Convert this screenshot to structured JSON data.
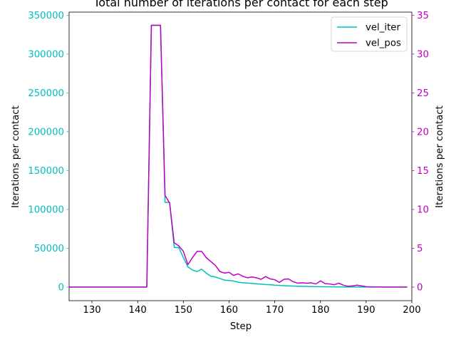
{
  "chart_data": {
    "type": "line",
    "title": "Total number of iterations per contact for each step",
    "xlabel": "Step",
    "ylabel_left": "Iterations per contact",
    "ylabel_right": "Iterations per contact",
    "xlim": [
      125,
      200
    ],
    "ylim_left": [
      -17500,
      354000
    ],
    "ylim_right": [
      -1.75,
      35.4
    ],
    "xticks": [
      130,
      140,
      150,
      160,
      170,
      180,
      190,
      200
    ],
    "yticks_left": [
      0,
      50000,
      100000,
      150000,
      200000,
      250000,
      300000,
      350000
    ],
    "yticks_right": [
      0,
      5,
      10,
      15,
      20,
      25,
      30,
      35
    ],
    "grid": false,
    "legend_position": "top-right",
    "colors": {
      "vel_iter": "#00bfbf",
      "vel_pos": "#bf00bf",
      "left_axis": "#00bfbf",
      "right_axis": "#bf00bf"
    },
    "series": [
      {
        "name": "vel_iter",
        "axis": "left",
        "x": [
          125,
          126,
          127,
          128,
          129,
          130,
          131,
          132,
          133,
          134,
          135,
          136,
          137,
          138,
          139,
          140,
          141,
          142,
          143,
          144,
          145,
          146,
          147,
          148,
          149,
          150,
          151,
          152,
          153,
          154,
          155,
          156,
          157,
          158,
          159,
          160,
          161,
          162,
          163,
          164,
          165,
          166,
          167,
          168,
          169,
          170,
          171,
          172,
          173,
          174,
          175,
          176,
          177,
          178,
          179,
          180,
          181,
          182,
          183,
          184,
          185,
          186,
          187,
          188,
          189,
          190,
          191,
          192,
          193,
          194,
          195,
          196,
          197,
          198,
          199
        ],
        "values": [
          0,
          0,
          0,
          0,
          0,
          0,
          0,
          0,
          0,
          0,
          0,
          0,
          0,
          0,
          0,
          0,
          0,
          0,
          337000,
          337000,
          337000,
          109000,
          109000,
          51000,
          51000,
          38000,
          26000,
          22000,
          20000,
          23000,
          18000,
          14000,
          13000,
          11000,
          9000,
          8500,
          7800,
          6200,
          5600,
          5200,
          4700,
          4200,
          3800,
          3300,
          3000,
          2500,
          2200,
          1800,
          1500,
          1300,
          1100,
          950,
          800,
          650,
          550,
          450,
          400,
          350,
          300,
          250,
          200,
          150,
          120,
          100,
          80,
          60,
          40,
          30,
          20,
          10,
          0,
          0,
          0,
          0,
          0
        ]
      },
      {
        "name": "vel_pos",
        "axis": "right",
        "x": [
          125,
          126,
          127,
          128,
          129,
          130,
          131,
          132,
          133,
          134,
          135,
          136,
          137,
          138,
          139,
          140,
          141,
          142,
          143,
          144,
          145,
          146,
          147,
          148,
          149,
          150,
          151,
          152,
          153,
          154,
          155,
          156,
          157,
          158,
          159,
          160,
          161,
          162,
          163,
          164,
          165,
          166,
          167,
          168,
          169,
          170,
          171,
          172,
          173,
          174,
          175,
          176,
          177,
          178,
          179,
          180,
          181,
          182,
          183,
          184,
          185,
          186,
          187,
          188,
          189,
          190,
          191,
          192,
          193,
          194,
          195,
          196,
          197,
          198,
          199
        ],
        "values": [
          0,
          0,
          0,
          0,
          0,
          0,
          0,
          0,
          0,
          0,
          0,
          0,
          0,
          0,
          0,
          0,
          0,
          0,
          33.7,
          33.7,
          33.7,
          11.8,
          10.8,
          5.7,
          5.3,
          4.6,
          2.9,
          3.8,
          4.6,
          4.6,
          3.8,
          3.3,
          2.8,
          2.0,
          1.8,
          1.9,
          1.5,
          1.7,
          1.4,
          1.2,
          1.3,
          1.2,
          1.0,
          1.35,
          1.05,
          0.95,
          0.6,
          1.0,
          1.05,
          0.7,
          0.5,
          0.55,
          0.5,
          0.55,
          0.4,
          0.8,
          0.45,
          0.4,
          0.3,
          0.5,
          0.25,
          0.1,
          0.15,
          0.25,
          0.15,
          0.05,
          0.03,
          0.02,
          0.01,
          0,
          0,
          0,
          0,
          0,
          0
        ]
      }
    ]
  }
}
